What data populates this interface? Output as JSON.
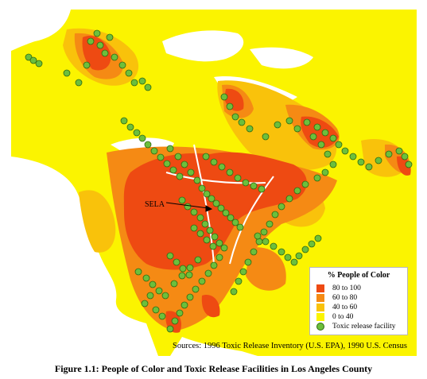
{
  "map": {
    "label": "SELA",
    "legend": {
      "title": "% People of Color",
      "items": [
        {
          "label": "80 to 100",
          "color": "#ee4a12"
        },
        {
          "label": "60 to 80",
          "color": "#f58a14"
        },
        {
          "label": "40 to 60",
          "color": "#f9c20b"
        },
        {
          "label": "0 to 40",
          "color": "#fbf400"
        },
        {
          "label": "Toxic release facility",
          "color": "#6cbf3c"
        }
      ]
    },
    "sources": "Sources: 1996 Toxic Release Inventory (U.S. EPA), 1990 U.S. Census",
    "caption": "Figure 1.1: People of Color and Toxic Release Facilities in Los Angeles County"
  }
}
